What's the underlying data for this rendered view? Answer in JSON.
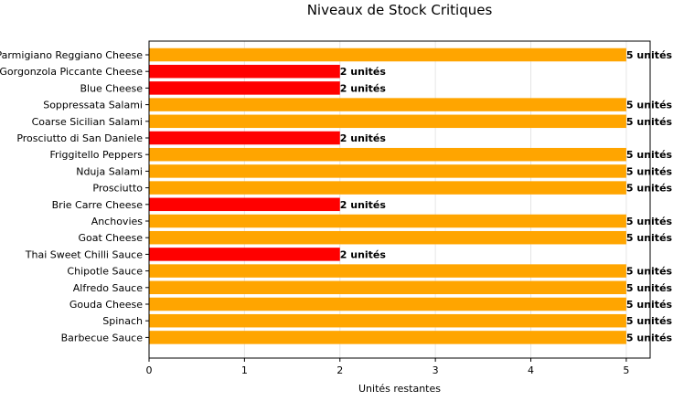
{
  "chart_data": {
    "type": "bar",
    "orientation": "horizontal",
    "title": "Niveaux de Stock Critiques",
    "xlabel": "Unités restantes",
    "ylabel": "",
    "xlim": [
      0,
      5.25
    ],
    "x_ticks": [
      0,
      1,
      2,
      3,
      4,
      5
    ],
    "grid": "vertical",
    "categories": [
      "Parmigiano Reggiano Cheese",
      "Gorgonzola Piccante Cheese",
      "Blue Cheese",
      "Soppressata Salami",
      "Coarse Sicilian Salami",
      "Prosciutto di San Daniele",
      "Friggitello Peppers",
      "Nduja Salami",
      "Prosciutto",
      "Brie Carre Cheese",
      "Anchovies",
      "Goat Cheese",
      "Thai Sweet Chilli Sauce",
      "Chipotle Sauce",
      "Alfredo Sauce",
      "Gouda Cheese",
      "Spinach",
      "Barbecue Sauce"
    ],
    "values": [
      5,
      2,
      2,
      5,
      5,
      2,
      5,
      5,
      5,
      2,
      5,
      5,
      2,
      5,
      5,
      5,
      5,
      5
    ],
    "data_labels": [
      "5 unités",
      "2 unités",
      "2 unités",
      "5 unités",
      "5 unités",
      "2 unités",
      "5 unités",
      "5 unités",
      "5 unités",
      "2 unités",
      "5 unités",
      "5 unités",
      "2 unités",
      "5 unités",
      "5 unités",
      "5 unités",
      "5 unités",
      "5 unités"
    ],
    "colors": {
      "critical": "#ff0000",
      "low": "#ffa500",
      "critical_threshold": 2
    }
  }
}
